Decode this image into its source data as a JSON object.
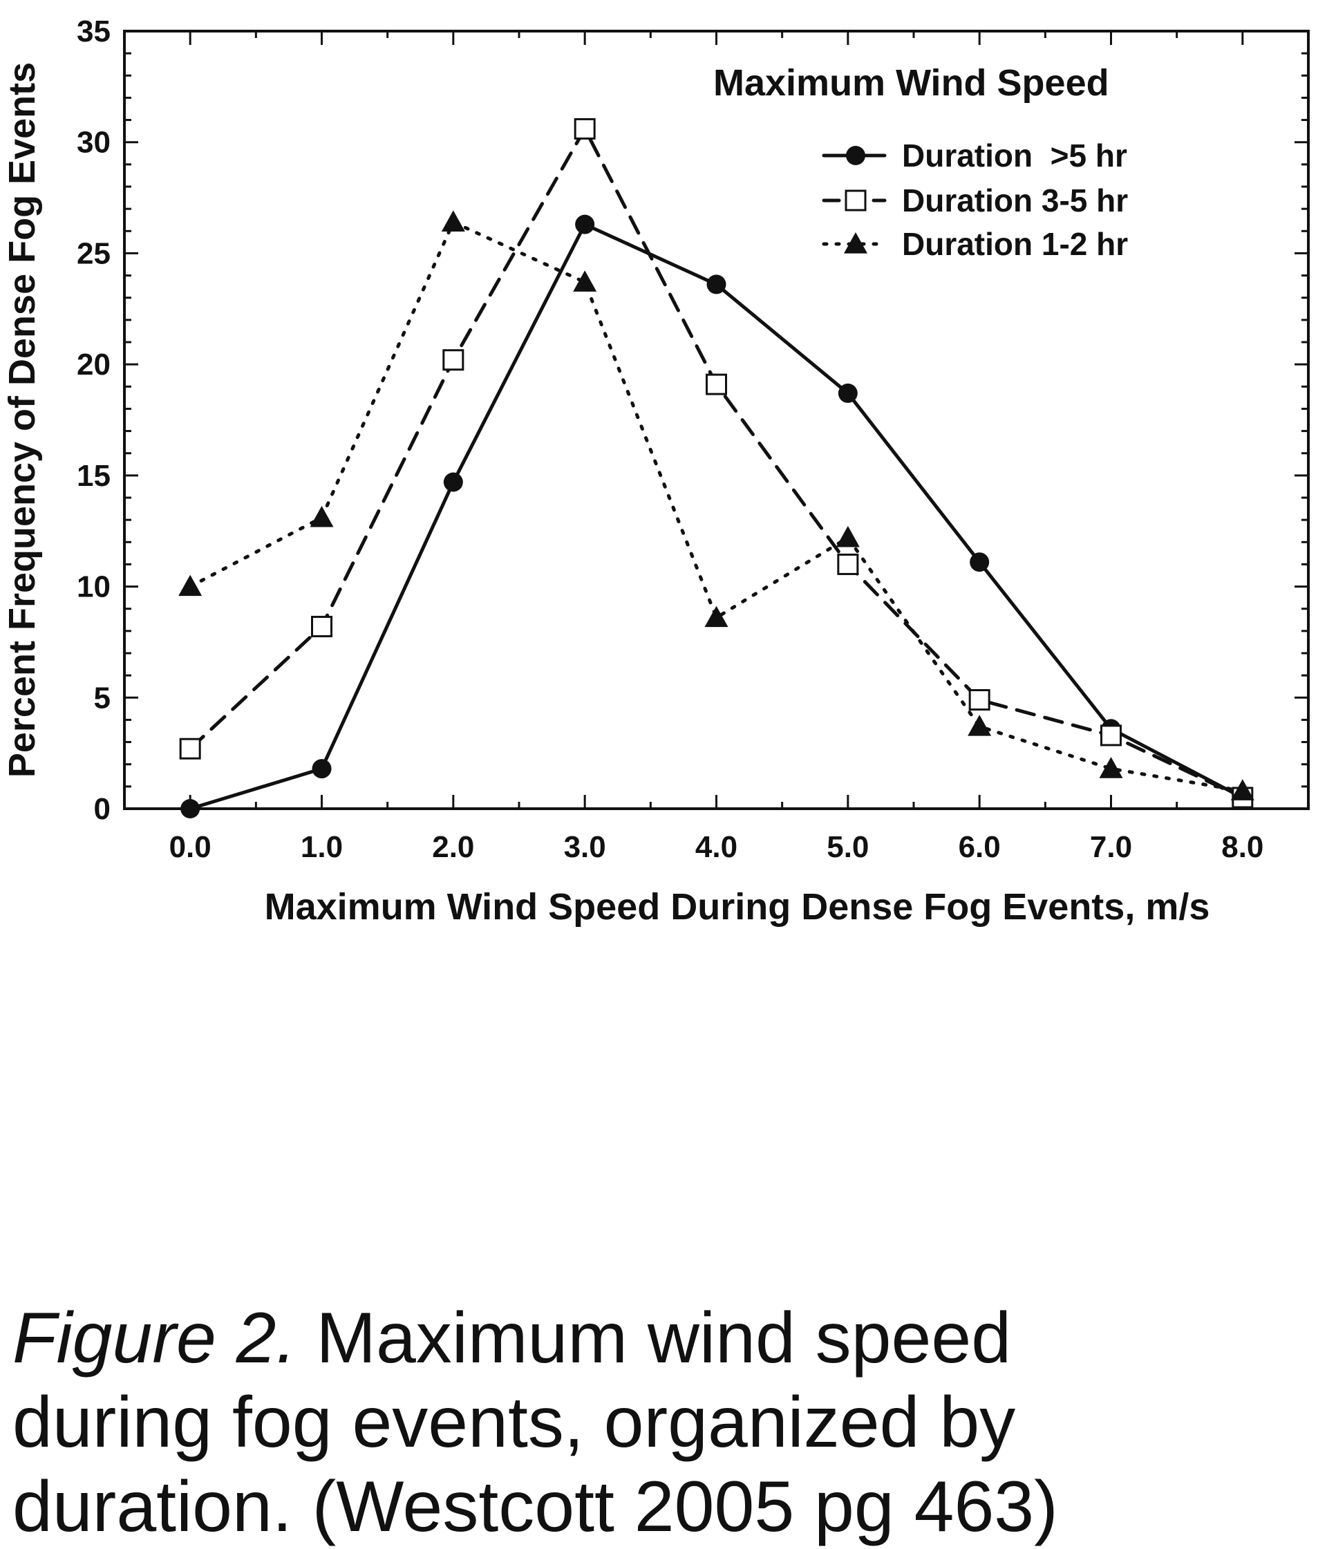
{
  "chart_data": {
    "type": "line",
    "title": "",
    "legend_title": "Maximum Wind Speed",
    "xlabel": "Maximum Wind Speed During Dense Fog Events, m/s",
    "ylabel": "Percent Frequency of Dense Fog Events",
    "xlim": [
      -0.5,
      8.5
    ],
    "ylim": [
      0,
      35
    ],
    "x": [
      0.0,
      1.0,
      2.0,
      3.0,
      4.0,
      5.0,
      6.0,
      7.0,
      8.0
    ],
    "x_tick_labels": [
      "0.0",
      "1.0",
      "2.0",
      "3.0",
      "4.0",
      "5.0",
      "6.0",
      "7.0",
      "8.0"
    ],
    "y_ticks": [
      0,
      5,
      10,
      15,
      20,
      25,
      30,
      35
    ],
    "y_tick_labels": [
      "0",
      "5",
      "10",
      "15",
      "20",
      "25",
      "30",
      "35"
    ],
    "grid": false,
    "legend_position": "top-right",
    "series": [
      {
        "name": "Duration  >5 hr",
        "marker": "filled-circle",
        "line_style": "solid",
        "values": [
          0.0,
          1.8,
          14.7,
          26.3,
          23.6,
          18.7,
          11.1,
          3.6,
          0.5
        ]
      },
      {
        "name": "Duration 3-5 hr",
        "marker": "open-square",
        "line_style": "dashed",
        "values": [
          2.7,
          8.2,
          20.2,
          30.6,
          19.1,
          11.0,
          4.9,
          3.3,
          0.5
        ]
      },
      {
        "name": "Duration 1-2 hr",
        "marker": "filled-triangle",
        "line_style": "dotted",
        "values": [
          10.0,
          13.1,
          26.4,
          23.7,
          8.6,
          12.2,
          3.7,
          1.8,
          0.8
        ]
      }
    ],
    "colors": {
      "line": "#111111",
      "background": "#ffffff"
    }
  },
  "caption": {
    "figure_label": "Figure 2.",
    "text_line1": " Maximum wind speed",
    "text_line2": "during fog events, organized by",
    "text_line3": "duration. (Westcott 2005 pg 463)"
  }
}
